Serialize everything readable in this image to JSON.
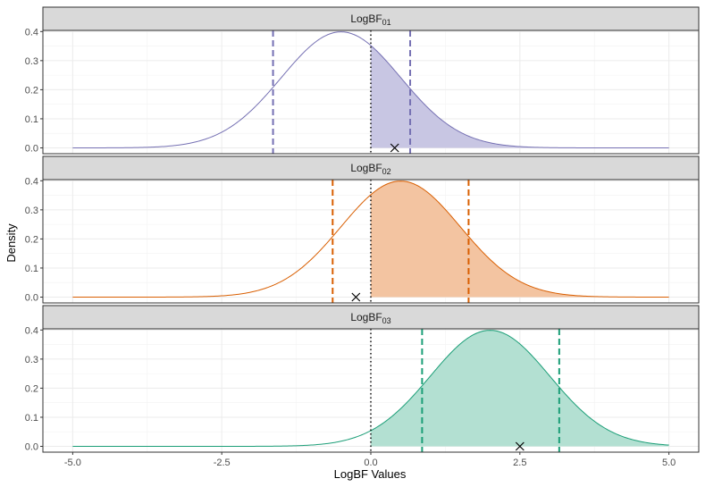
{
  "chart_data": {
    "type": "area",
    "xlabel": "LogBF Values",
    "ylabel": "Density",
    "xlim": [
      -5.0,
      5.0
    ],
    "ylim": [
      0.0,
      0.4
    ],
    "x_ticks": [
      "-5.0",
      "-2.5",
      "0.0",
      "2.5",
      "5.0"
    ],
    "y_ticks": [
      "0.0",
      "0.1",
      "0.2",
      "0.3",
      "0.4"
    ],
    "grid": true,
    "reference_line_x": 0.0,
    "panels": [
      {
        "label_base": "LogBF",
        "label_sub": "01",
        "color": "#7570b3",
        "fill_color": "#c8c6e3",
        "mean": -0.5,
        "sd": 1.0,
        "interval": [
          -1.64,
          0.66
        ],
        "shaded_from": 0.0,
        "marker_x": 0.4,
        "marker_y": 0.0
      },
      {
        "label_base": "LogBF",
        "label_sub": "02",
        "color": "#d95f02",
        "fill_color": "#f3c4a1",
        "mean": 0.5,
        "sd": 1.0,
        "interval": [
          -0.64,
          1.64
        ],
        "shaded_from": 0.0,
        "marker_x": -0.25,
        "marker_y": 0.0
      },
      {
        "label_base": "LogBF",
        "label_sub": "03",
        "color": "#1b9e77",
        "fill_color": "#b3e0d2",
        "mean": 2.0,
        "sd": 1.0,
        "interval": [
          0.86,
          3.16
        ],
        "shaded_from": 0.0,
        "marker_x": 2.5,
        "marker_y": 0.0
      }
    ]
  }
}
